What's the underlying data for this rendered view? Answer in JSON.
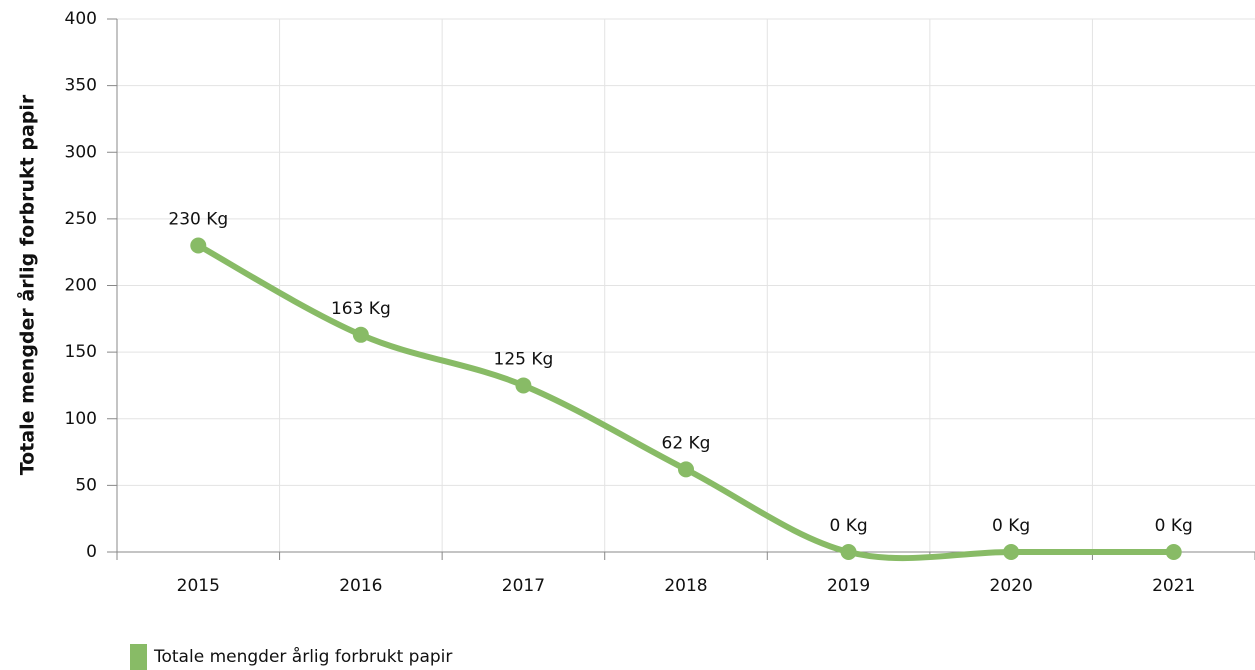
{
  "chart_data": {
    "type": "line",
    "y_label": "Totale mengder årlig forbrukt papir",
    "categories": [
      "2015",
      "2016",
      "2017",
      "2018",
      "2019",
      "2020",
      "2021"
    ],
    "series": [
      {
        "name": "Totale mengder årlig forbrukt papir",
        "color": "#88bb66",
        "values": [
          230,
          163,
          125,
          62,
          0,
          0,
          0
        ],
        "value_labels": [
          "230 Kg",
          "163 Kg",
          "125 Kg",
          "62 Kg",
          "0 Kg",
          "0 Kg",
          "0 Kg"
        ]
      }
    ],
    "ylim": [
      0,
      400
    ],
    "yticks": [
      0,
      50,
      100,
      150,
      200,
      250,
      300,
      350,
      400
    ],
    "grid": true,
    "legend": "bottom-left"
  }
}
